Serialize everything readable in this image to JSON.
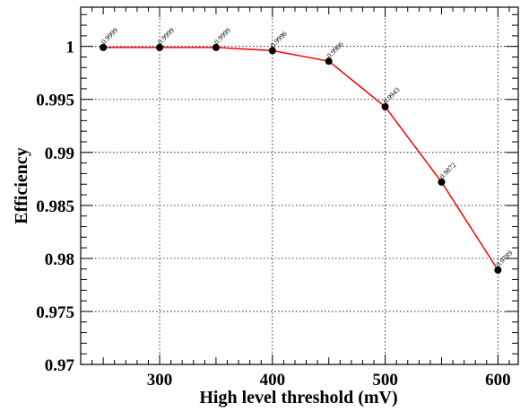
{
  "chart_data": {
    "type": "line",
    "title": "",
    "xlabel": "High level threshold (mV)",
    "ylabel": "Efficiency",
    "xlim": [
      230,
      618
    ],
    "ylim": [
      0.97,
      1.0037
    ],
    "x_ticks": [
      300,
      400,
      500,
      600
    ],
    "x_tick_labels": [
      "300",
      "400",
      "500",
      "600"
    ],
    "y_ticks": [
      0.97,
      0.975,
      0.98,
      0.985,
      0.99,
      0.995,
      1.0
    ],
    "y_tick_labels": [
      "0.97",
      "0.975",
      "0.98",
      "0.985",
      "0.99",
      "0.995",
      "1"
    ],
    "grid": true,
    "line_color": "#ff0000",
    "marker_color": "#000000",
    "series": [
      {
        "x": [
          250,
          300,
          350,
          400,
          450,
          500,
          550,
          600
        ],
        "y": [
          0.9999,
          0.9999,
          0.9999,
          0.9996,
          0.9986,
          0.9943,
          0.9872,
          0.9789
        ],
        "data_labels": [
          "0.9999",
          "0.9999",
          "0.9999",
          "0.9996",
          "0.9986",
          "0.9943",
          "0.9872",
          "0.9789"
        ]
      }
    ]
  }
}
